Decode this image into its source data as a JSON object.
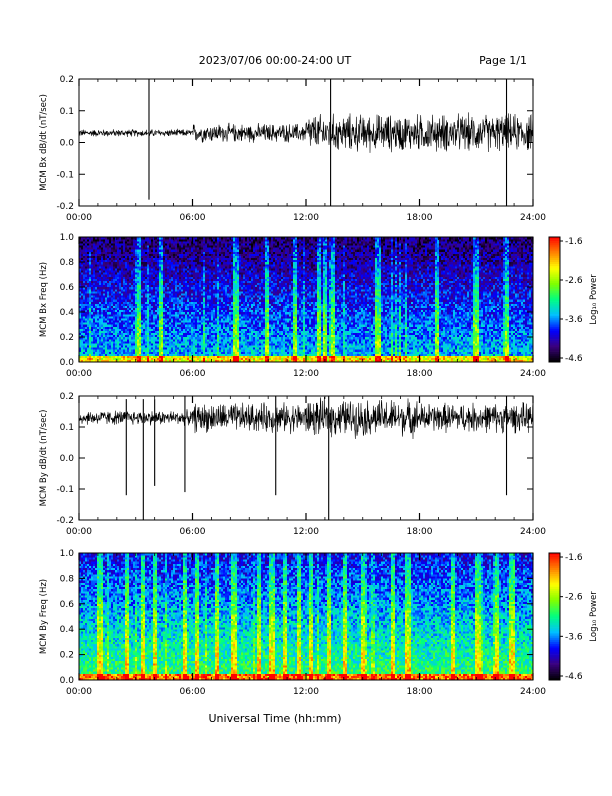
{
  "header": {
    "title": "2023/07/06  00:00-24:00 UT",
    "page": "Page 1/1"
  },
  "xaxis": {
    "label": "Universal Time (hh:mm)",
    "ticks": [
      "00:00",
      "06:00",
      "12:00",
      "18:00",
      "24:00"
    ],
    "range_hours": [
      0,
      24
    ]
  },
  "colorbar": {
    "label": "Log₁₀ Power",
    "ticks": [
      "-1.6",
      "-2.6",
      "-3.6",
      "-4.6"
    ],
    "range": [
      -4.6,
      -1.6
    ],
    "colormap": [
      "#000000",
      "#3a0080",
      "#0000ff",
      "#00c0ff",
      "#00ff80",
      "#80ff00",
      "#ffff00",
      "#ff8000",
      "#ff0000"
    ]
  },
  "chart_data": [
    {
      "type": "line",
      "ylabel": "MCM Bx dB/dt (nT/sec)",
      "ylim": [
        -0.2,
        0.2
      ],
      "yticks": [
        "0.2",
        "0.1",
        "0.0",
        "-0.1",
        "-0.2"
      ],
      "baseline": 0.03,
      "noise": [
        0.01,
        0.025,
        0.05,
        0.05
      ],
      "spikes": [
        {
          "x": 3.7,
          "hi": 0.2,
          "lo": -0.18
        },
        {
          "x": 13.3,
          "hi": 0.2,
          "lo": -0.2
        },
        {
          "x": 22.6,
          "hi": 0.2,
          "lo": -0.2
        }
      ]
    },
    {
      "type": "heatmap",
      "ylabel": "MCM Bx Freq (Hz)",
      "ylim": [
        0.0,
        1.0
      ],
      "yticks": [
        "1.0",
        "0.8",
        "0.6",
        "0.4",
        "0.2",
        "0.0"
      ],
      "z_range": [
        -4.6,
        -1.6
      ],
      "background": -3.4,
      "bands": [
        3.2,
        4.3,
        8.3,
        9.9,
        11.4,
        12.7,
        13.0,
        13.4,
        15.8,
        18.9,
        21.0,
        22.6
      ]
    },
    {
      "type": "line",
      "ylabel": "MCM By dB/dt (nT/sec)",
      "ylim": [
        -0.2,
        0.2
      ],
      "yticks": [
        "0.2",
        "0.1",
        "0.0",
        "-0.1",
        "-0.2"
      ],
      "baseline": 0.13,
      "noise": [
        0.02,
        0.04,
        0.05,
        0.04
      ],
      "spikes": [
        {
          "x": 2.5,
          "hi": 0.19,
          "lo": -0.12
        },
        {
          "x": 3.4,
          "hi": 0.19,
          "lo": -0.2
        },
        {
          "x": 4.0,
          "hi": 0.19,
          "lo": -0.09
        },
        {
          "x": 5.6,
          "hi": 0.2,
          "lo": -0.11
        },
        {
          "x": 10.4,
          "hi": 0.2,
          "lo": -0.12
        },
        {
          "x": 13.2,
          "hi": 0.2,
          "lo": -0.2
        },
        {
          "x": 22.6,
          "hi": 0.2,
          "lo": -0.12
        }
      ]
    },
    {
      "type": "heatmap",
      "ylabel": "MCM By Freq (Hz)",
      "ylim": [
        0.0,
        1.0
      ],
      "yticks": [
        "1.0",
        "0.8",
        "0.6",
        "0.4",
        "0.2",
        "0.0"
      ],
      "z_range": [
        -4.6,
        -1.6
      ],
      "background": -3.0,
      "bands": [
        1.1,
        2.5,
        3.4,
        4.0,
        5.6,
        6.2,
        7.3,
        8.2,
        9.5,
        10.2,
        10.9,
        11.6,
        12.3,
        13.2,
        14.1,
        15.0,
        16.6,
        17.4,
        19.8,
        21.1,
        22.1,
        22.9
      ]
    }
  ]
}
